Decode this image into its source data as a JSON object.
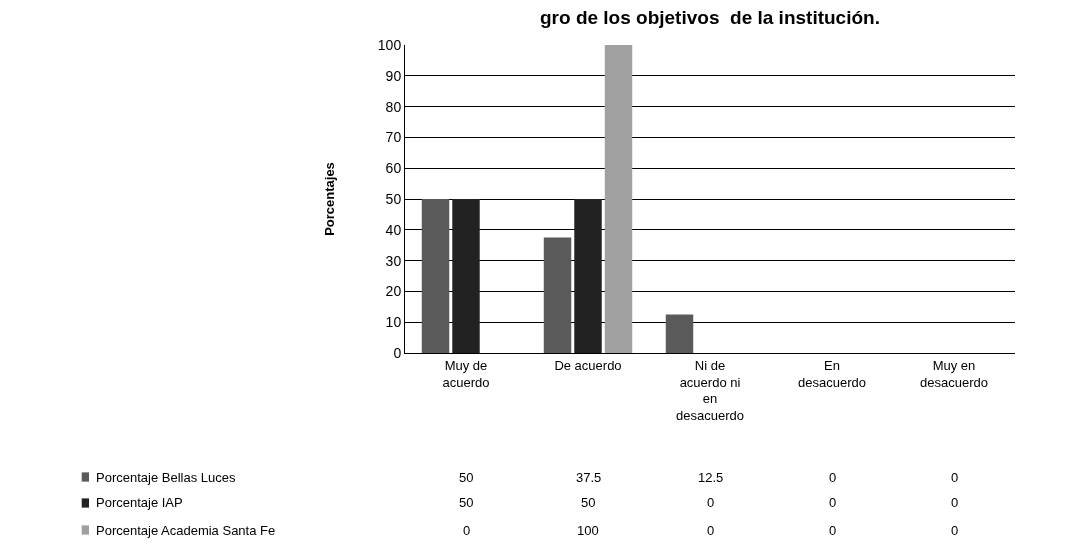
{
  "chart_data": {
    "type": "bar",
    "title": "gro de los objetivos  de la institución.",
    "ylabel": "Porcentajes",
    "categories": [
      "Muy de acuerdo",
      "De acuerdo",
      "Ni de acuerdo ni en desacuerdo",
      "En desacuerdo",
      "Muy en desacuerdo"
    ],
    "series": [
      {
        "name": "Porcentaje Bellas Luces",
        "color": "#5a5a5a",
        "values": [
          50,
          37.5,
          12.5,
          0,
          0
        ]
      },
      {
        "name": "Porcentaje IAP",
        "color": "#222222",
        "values": [
          50,
          50,
          0,
          0,
          0
        ]
      },
      {
        "name": "Porcentaje Academia Santa Fe",
        "color": "#a0a0a0",
        "values": [
          0,
          100,
          0,
          0,
          0
        ]
      }
    ],
    "ylim": [
      0,
      100
    ],
    "yticks": [
      0,
      10,
      20,
      30,
      40,
      50,
      60,
      70,
      80,
      90,
      100
    ],
    "grid": "y",
    "legend": "bottom",
    "data_labels": true
  }
}
